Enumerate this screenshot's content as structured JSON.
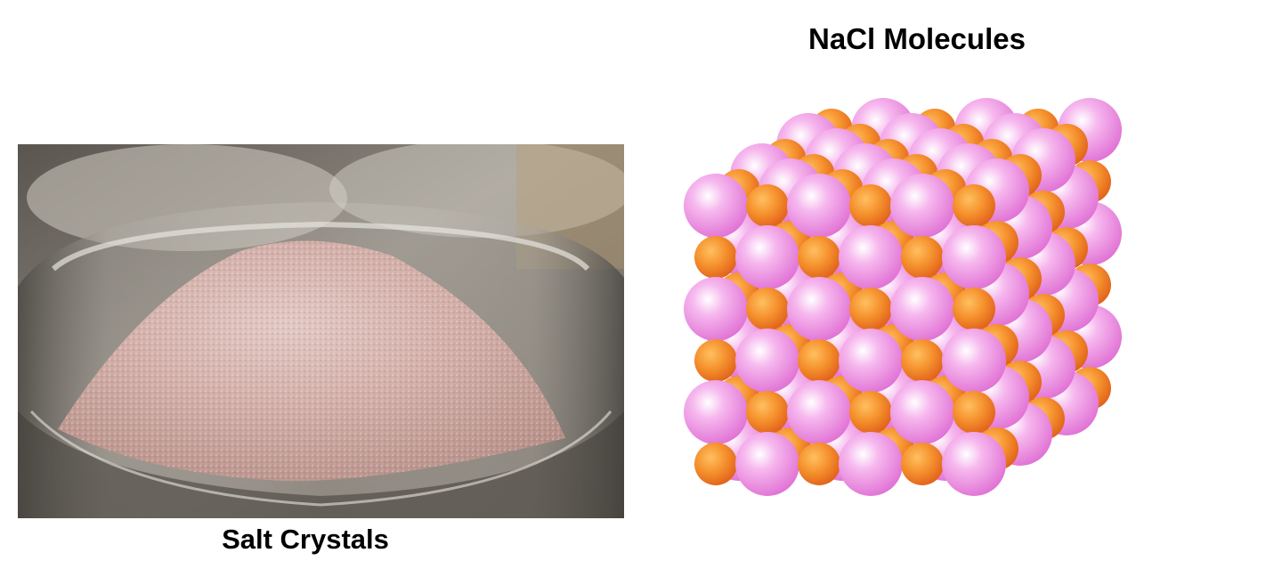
{
  "figure": {
    "top_caption": "NaCl Molecules",
    "bottom_caption": "Salt Crystals"
  },
  "photo": {
    "subject": "pink salt crystals in a glass bowl"
  },
  "illustration": {
    "subject": "NaCl crystal lattice cube",
    "colors": {
      "large_sphere": "#f08ae0",
      "large_sphere_highlight": "#ffffff",
      "small_sphere": "#f07a1e",
      "small_sphere_highlight": "#ffc060"
    }
  }
}
